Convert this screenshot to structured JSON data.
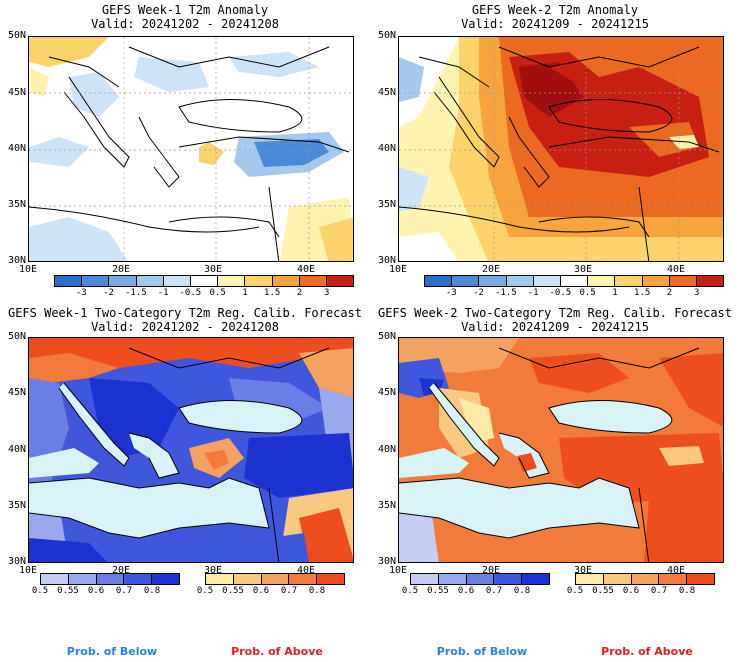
{
  "panels": [
    {
      "title": "GEFS Week-1 T2m Anomaly",
      "valid": "Valid: 20241202 - 20241208"
    },
    {
      "title": "GEFS Week-2 T2m Anomaly",
      "valid": "Valid: 20241209 - 20241215"
    },
    {
      "title": "GEFS Week-1 Two-Category T2m Reg. Calib. Forecast",
      "valid": "Valid: 20241202 - 20241208"
    },
    {
      "title": "GEFS Week-2 Two-Category T2m Reg. Calib. Forecast",
      "valid": "Valid: 20241209 - 20241215"
    }
  ],
  "axes": {
    "lat_labels": [
      "50N",
      "45N",
      "40N",
      "35N",
      "30N"
    ],
    "lon_labels": [
      "10E",
      "20E",
      "30E",
      "40E"
    ]
  },
  "anomaly_colorbar": {
    "labels": [
      "-3",
      "-2",
      "-1.5",
      "-1",
      "-0.5",
      "0.5",
      "1",
      "1.5",
      "2",
      "3"
    ],
    "colors": [
      "#2a6fc9",
      "#4a8ad8",
      "#74a9e2",
      "#a3c9ef",
      "#cfe3f7",
      "#ffffff",
      "#fff3b0",
      "#fcd26a",
      "#f8a43c",
      "#ea6a22",
      "#c71f12"
    ]
  },
  "prob_colorbar": {
    "labels": [
      "0.5",
      "0.55",
      "0.6",
      "0.7",
      "0.8"
    ],
    "below_colors": [
      "#c5cdf5",
      "#9aa8ee",
      "#6b7ee6",
      "#3f57dd",
      "#1c33d1"
    ],
    "above_colors": [
      "#fde9a8",
      "#f9c982",
      "#f5a160",
      "#f27a3b",
      "#ee4e1f"
    ]
  },
  "captions": {
    "below": "Prob. of Below",
    "above": "Prob. of Above"
  },
  "colors": {
    "caption_below": "#2a7fe0",
    "caption_above": "#e02020",
    "sea": "#d8f3f6"
  }
}
